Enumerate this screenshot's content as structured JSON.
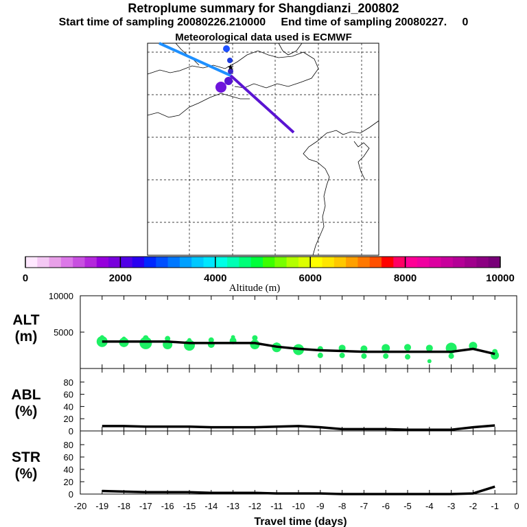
{
  "header": {
    "title": "Retroplume summary for Shangdianzi_200802",
    "start_label": "Start time of sampling 20080226.210000",
    "end_label": "End time of sampling 20080227.     0",
    "met_label": "Meteorological data used is ECMWF"
  },
  "colorbar": {
    "xlabel": "Altitude  (m)",
    "ticks": [
      "0",
      "2000",
      "4000",
      "6000",
      "8000",
      "10000"
    ],
    "colors": [
      "#ffe8ff",
      "#f4c8f4",
      "#e8a0e8",
      "#dc78e8",
      "#c850e0",
      "#b428dc",
      "#9600dc",
      "#7800dc",
      "#5000e6",
      "#2800f0",
      "#0028ff",
      "#0050ff",
      "#0078ff",
      "#00a0ff",
      "#00c8ff",
      "#00e6ff",
      "#00ffe6",
      "#00ffb4",
      "#00ff78",
      "#00ff3c",
      "#3cff00",
      "#78ff00",
      "#b4ff00",
      "#dcff00",
      "#ffff00",
      "#ffe600",
      "#ffc800",
      "#ffa000",
      "#ff7800",
      "#ff5000",
      "#ff0000",
      "#ff0064",
      "#ff0096",
      "#f000a0",
      "#dc00a0",
      "#c8009c",
      "#b40096",
      "#a0008c",
      "#8c0082",
      "#780078"
    ]
  },
  "map": {
    "trajectories": [
      {
        "name": "northwest-branch",
        "color": "#1e90ff"
      },
      {
        "name": "southeast-branch",
        "color": "#5a14d2"
      }
    ]
  },
  "chart_data": [
    {
      "type": "line",
      "panel": "ALT",
      "label_line1": "ALT",
      "label_line2": "(m)",
      "ylim": [
        0,
        10000
      ],
      "yticks": [
        "10000",
        "5000"
      ],
      "x": [
        -19,
        -18,
        -17,
        -16,
        -15,
        -14,
        -13,
        -12,
        -11,
        -10,
        -9,
        -8,
        -7,
        -6,
        -5,
        -4,
        -3,
        -2,
        -1
      ],
      "mean_values": [
        3700,
        3700,
        3700,
        3700,
        3500,
        3500,
        3500,
        3500,
        3000,
        2700,
        2500,
        2400,
        2300,
        2300,
        2300,
        2300,
        2300,
        2700,
        2000
      ],
      "dots": [
        {
          "x": -19,
          "y": 3700,
          "r": 8
        },
        {
          "x": -19,
          "y": 4300,
          "r": 3
        },
        {
          "x": -18,
          "y": 3600,
          "r": 7
        },
        {
          "x": -18,
          "y": 4100,
          "r": 3
        },
        {
          "x": -17,
          "y": 3500,
          "r": 9
        },
        {
          "x": -17,
          "y": 4200,
          "r": 4
        },
        {
          "x": -16,
          "y": 3300,
          "r": 7
        },
        {
          "x": -16,
          "y": 4100,
          "r": 4
        },
        {
          "x": -15,
          "y": 3200,
          "r": 8
        },
        {
          "x": -15,
          "y": 3900,
          "r": 3
        },
        {
          "x": -14,
          "y": 3300,
          "r": 5
        },
        {
          "x": -14,
          "y": 3900,
          "r": 4
        },
        {
          "x": -13,
          "y": 3800,
          "r": 5
        },
        {
          "x": -13,
          "y": 4300,
          "r": 3
        },
        {
          "x": -12,
          "y": 3300,
          "r": 7
        },
        {
          "x": -12,
          "y": 4200,
          "r": 4
        },
        {
          "x": -11,
          "y": 2900,
          "r": 7
        },
        {
          "x": -11,
          "y": 3300,
          "r": 3
        },
        {
          "x": -10,
          "y": 2600,
          "r": 8
        },
        {
          "x": -9,
          "y": 2700,
          "r": 4
        },
        {
          "x": -9,
          "y": 1800,
          "r": 4
        },
        {
          "x": -8,
          "y": 2800,
          "r": 5
        },
        {
          "x": -8,
          "y": 1800,
          "r": 4
        },
        {
          "x": -7,
          "y": 2700,
          "r": 5
        },
        {
          "x": -7,
          "y": 1700,
          "r": 4
        },
        {
          "x": -6,
          "y": 2800,
          "r": 6
        },
        {
          "x": -6,
          "y": 1700,
          "r": 4
        },
        {
          "x": -5,
          "y": 2900,
          "r": 5
        },
        {
          "x": -5,
          "y": 1600,
          "r": 4
        },
        {
          "x": -4,
          "y": 2800,
          "r": 5
        },
        {
          "x": -4,
          "y": 1000,
          "r": 3
        },
        {
          "x": -3,
          "y": 2800,
          "r": 8
        },
        {
          "x": -3,
          "y": 1700,
          "r": 4
        },
        {
          "x": -2,
          "y": 3100,
          "r": 6
        },
        {
          "x": -1,
          "y": 1800,
          "r": 6
        },
        {
          "x": -1,
          "y": 2300,
          "r": 4
        }
      ],
      "dot_color": "#1ef064"
    },
    {
      "type": "line",
      "panel": "ABL",
      "label_line1": "ABL",
      "label_line2": "(%)",
      "ylim": [
        0,
        100
      ],
      "yticks": [
        "80",
        "60",
        "40",
        "20",
        "0"
      ],
      "x": [
        -19,
        -18,
        -17,
        -16,
        -15,
        -14,
        -13,
        -12,
        -11,
        -10,
        -9,
        -8,
        -7,
        -6,
        -5,
        -4,
        -3,
        -2,
        -1
      ],
      "values": [
        8,
        8,
        7,
        7,
        7,
        6,
        6,
        6,
        7,
        8,
        6,
        3,
        3,
        3,
        2,
        2,
        2,
        6,
        9
      ]
    },
    {
      "type": "line",
      "panel": "STR",
      "label_line1": "STR",
      "label_line2": "(%)",
      "ylim": [
        0,
        100
      ],
      "yticks": [
        "80",
        "60",
        "40",
        "20",
        "0"
      ],
      "x": [
        -19,
        -18,
        -17,
        -16,
        -15,
        -14,
        -13,
        -12,
        -11,
        -10,
        -9,
        -8,
        -7,
        -6,
        -5,
        -4,
        -3,
        -2,
        -1
      ],
      "values": [
        5,
        4,
        3,
        3,
        3,
        2,
        2,
        2,
        1,
        1,
        1,
        0,
        0,
        0,
        0,
        0,
        0,
        1,
        12
      ],
      "xlabel": "Travel time (days)",
      "xticks": [
        "-20",
        "-19",
        "-18",
        "-17",
        "-16",
        "-15",
        "-14",
        "-13",
        "-12",
        "-11",
        "-10",
        "-9",
        "-8",
        "-7",
        "-6",
        "-5",
        "-4",
        "-3",
        "-2",
        "-1",
        "0"
      ]
    }
  ]
}
